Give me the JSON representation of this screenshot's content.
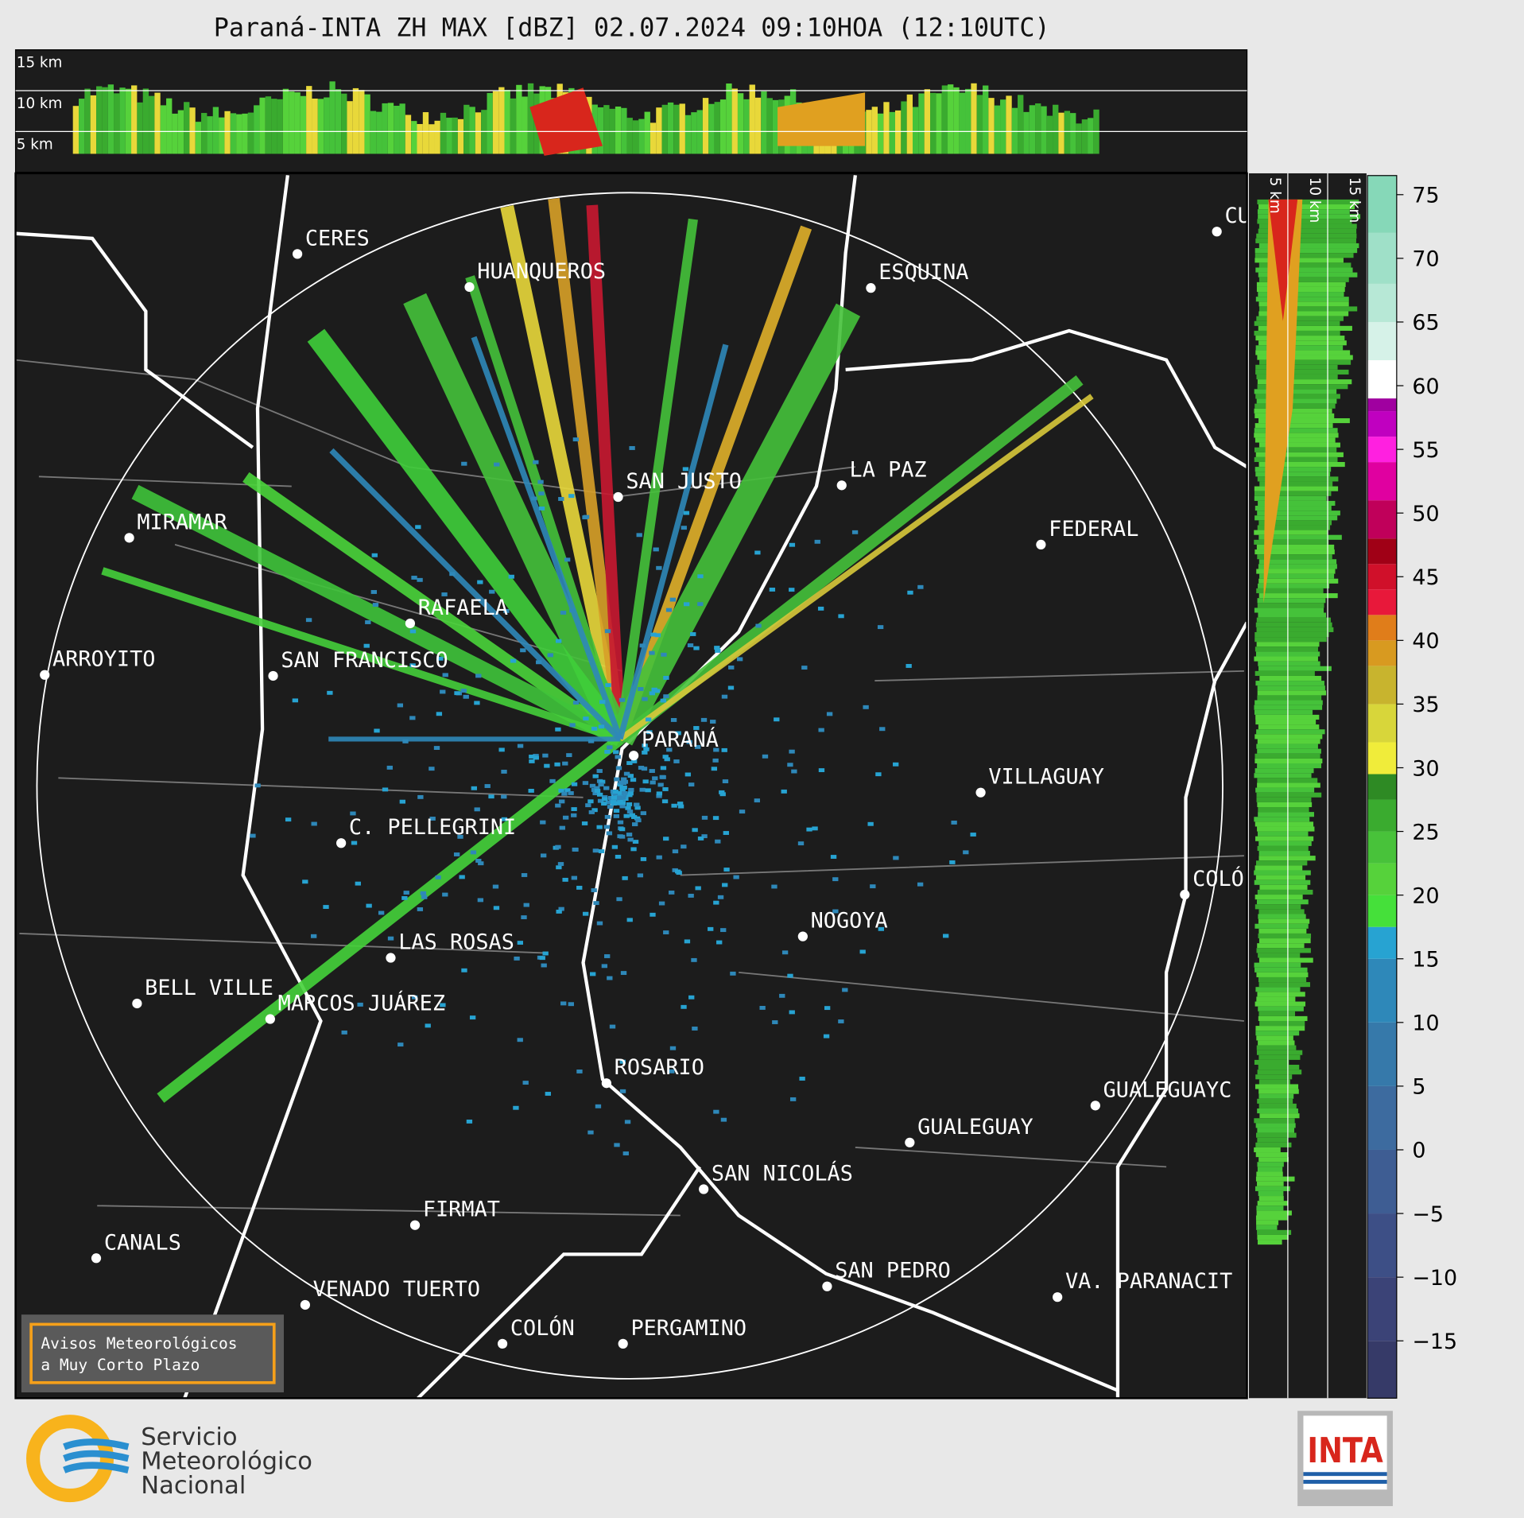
{
  "title": "Paraná-INTA ZH MAX [dBZ] 02.07.2024 09:10HOA (12:10UTC)",
  "top_panel": {
    "height_labels": [
      "15 km",
      "10 km",
      "5 km"
    ]
  },
  "side_panel": {
    "height_labels": [
      "5 km",
      "10 km",
      "15 km"
    ]
  },
  "map": {
    "cities": [
      "CERES",
      "HUANQUEROS",
      "ESQUINA",
      "CU",
      "LA PAZ",
      "SAN JUSTO",
      "FEDERAL",
      "MIRAMAR",
      "RAFAELA",
      "ARROYITO",
      "SAN FRANCISCO",
      "PARANÁ",
      "VILLAGUAY",
      "C. PELLEGRINI",
      "COLÓ",
      "NOGOYA",
      "LAS ROSAS",
      "BELL VILLE",
      "MARCOS JUÁREZ",
      "ROSARIO",
      "GUALEGUAYC",
      "GUALEGUAY",
      "SAN NICOLÁS",
      "FIRMAT",
      "CANALS",
      "SAN PEDRO",
      "VA. PARANACIT",
      "VENADO TUERTO",
      "COLÓN",
      "PERGAMINO"
    ]
  },
  "colorbar": {
    "range": [
      -19.5,
      76.5
    ],
    "ticks": [
      {
        "value": -15,
        "label": "−15"
      },
      {
        "value": -10,
        "label": "−10"
      },
      {
        "value": -5,
        "label": "−5"
      },
      0,
      5,
      10,
      15,
      20,
      25,
      30,
      35,
      40,
      45,
      50,
      55,
      60,
      65,
      70,
      75
    ],
    "bands": [
      {
        "from": -19.5,
        "color": "#363a68"
      },
      {
        "from": -15,
        "color": "#3b4377"
      },
      {
        "from": -10,
        "color": "#3d4f86"
      },
      {
        "from": -5,
        "color": "#3e5d93"
      },
      {
        "from": 0,
        "color": "#3d6b9f"
      },
      {
        "from": 5,
        "color": "#3679aa"
      },
      {
        "from": 10,
        "color": "#2e88b9"
      },
      {
        "from": 15,
        "color": "#27a3d2"
      },
      {
        "from": 17.5,
        "color": "#45e03a"
      },
      {
        "from": 20,
        "color": "#56d23b"
      },
      {
        "from": 22.5,
        "color": "#48c23a"
      },
      {
        "from": 25,
        "color": "#3aab2f"
      },
      {
        "from": 27.5,
        "color": "#2e8a24"
      },
      {
        "from": 29.5,
        "color": "#f0ec3a"
      },
      {
        "from": 32,
        "color": "#d8d63a"
      },
      {
        "from": 35,
        "color": "#c8b42e"
      },
      {
        "from": 38,
        "color": "#d89a20"
      },
      {
        "from": 40,
        "color": "#e07d1a"
      },
      {
        "from": 42,
        "color": "#e8183a"
      },
      {
        "from": 44,
        "color": "#d0102a"
      },
      {
        "from": 46,
        "color": "#a00016"
      },
      {
        "from": 48,
        "color": "#c0005a"
      },
      {
        "from": 51,
        "color": "#e000a0"
      },
      {
        "from": 54,
        "color": "#ff20e0"
      },
      {
        "from": 56,
        "color": "#c000c0"
      },
      {
        "from": 58,
        "color": "#a000a0"
      },
      {
        "from": 59,
        "color": "#ffffff"
      },
      {
        "from": 62,
        "color": "#d6f2e8"
      },
      {
        "from": 65,
        "color": "#b7e8d6"
      },
      {
        "from": 68,
        "color": "#9fe0c8"
      },
      {
        "from": 72,
        "color": "#86d8b8"
      }
    ]
  },
  "notice": {
    "lines": [
      "Avisos Meteorológicos",
      "a Muy Corto Plazo"
    ]
  },
  "logos": {
    "smn": [
      "Servicio",
      "Meteorológico",
      "Nacional"
    ],
    "inta": "INTA"
  }
}
